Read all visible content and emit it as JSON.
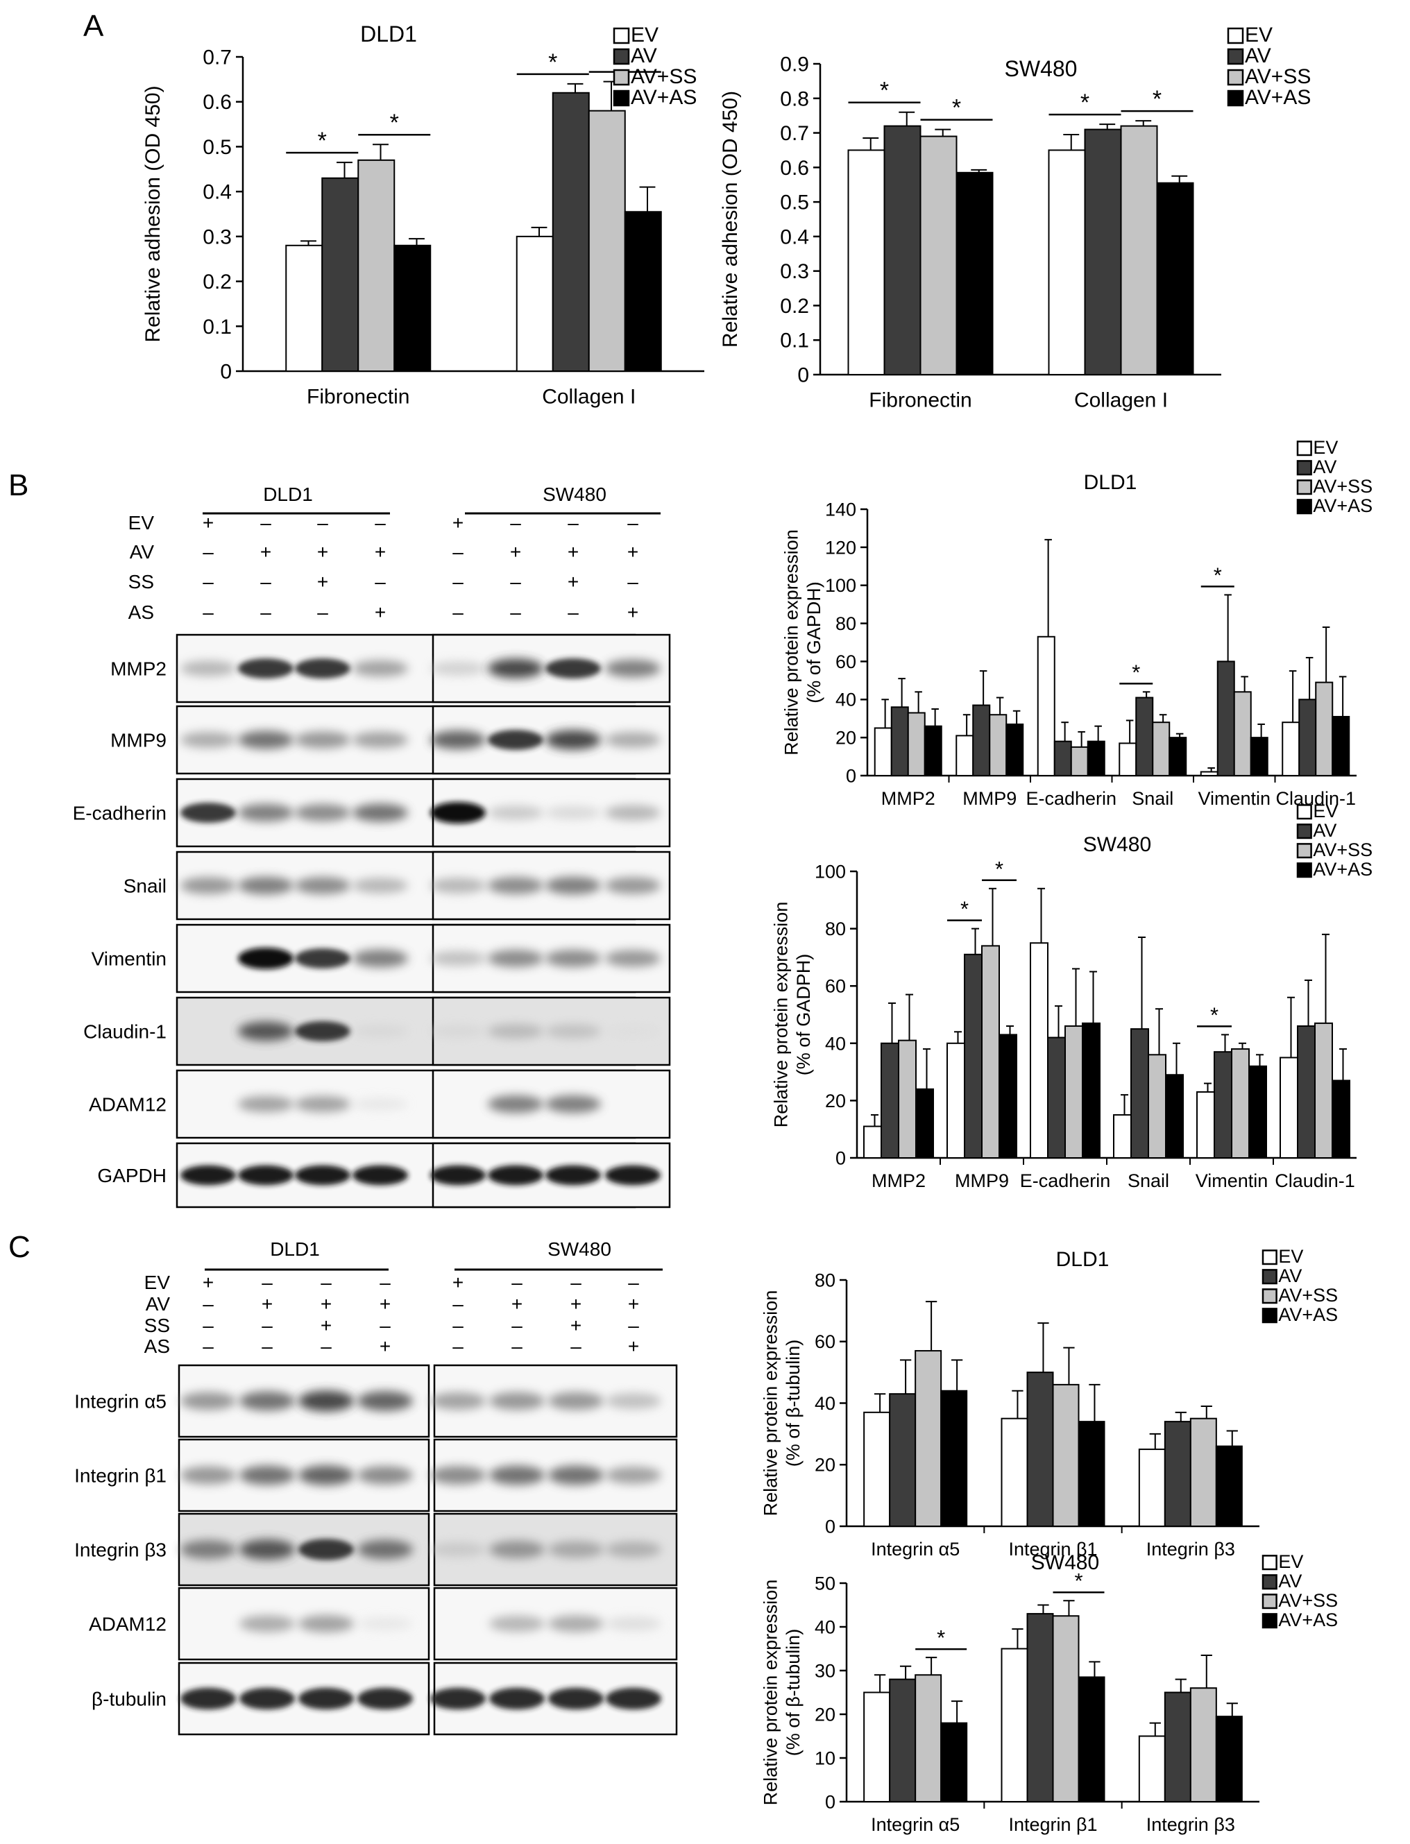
{
  "panels": {
    "A": "A",
    "B": "B",
    "C": "C"
  },
  "legend": [
    "EV",
    "AV",
    "AV+SS",
    "AV+AS"
  ],
  "colors": {
    "EV": "#ffffff",
    "AV": "#3d3d3d",
    "AV+SS": "#c4c4c4",
    "AV+AS": "#000000"
  },
  "blots": {
    "B": {
      "cell_lines": [
        "DLD1",
        "SW480"
      ],
      "treatment_rows": [
        {
          "label": "EV",
          "signs": [
            "+",
            "–",
            "–",
            "–",
            "+",
            "–",
            "–",
            "–"
          ]
        },
        {
          "label": "AV",
          "signs": [
            "–",
            "+",
            "+",
            "+",
            "–",
            "+",
            "+",
            "+"
          ]
        },
        {
          "label": "SS",
          "signs": [
            "–",
            "–",
            "+",
            "–",
            "–",
            "–",
            "+",
            "–"
          ]
        },
        {
          "label": "AS",
          "signs": [
            "–",
            "–",
            "–",
            "+",
            "–",
            "–",
            "–",
            "+"
          ]
        }
      ],
      "proteins": [
        "MMP2",
        "MMP9",
        "E-cadherin",
        "Snail",
        "Vimentin",
        "Claudin-1",
        "ADAM12",
        "GAPDH"
      ]
    },
    "C": {
      "cell_lines": [
        "DLD1",
        "SW480"
      ],
      "treatment_rows": [
        {
          "label": "EV",
          "signs": [
            "+",
            "–",
            "–",
            "–",
            "+",
            "–",
            "–",
            "–"
          ]
        },
        {
          "label": "AV",
          "signs": [
            "–",
            "+",
            "+",
            "+",
            "–",
            "+",
            "+",
            "+"
          ]
        },
        {
          "label": "SS",
          "signs": [
            "–",
            "–",
            "+",
            "–",
            "–",
            "–",
            "+",
            "–"
          ]
        },
        {
          "label": "AS",
          "signs": [
            "–",
            "–",
            "–",
            "+",
            "–",
            "–",
            "–",
            "+"
          ]
        }
      ],
      "proteins": [
        "Integrin α5",
        "Integrin β1",
        "Integrin β3",
        "ADAM12",
        "β-tubulin"
      ]
    }
  },
  "chart_data": [
    {
      "id": "A1",
      "type": "bar",
      "title": "DLD1",
      "ylabel": "Relative adhesion (OD 450)",
      "categories": [
        "Fibronectin",
        "Collagen I"
      ],
      "ylim": [
        0,
        0.7
      ],
      "yticks": [
        "0",
        "0.1",
        "0.2",
        "0.3",
        "0.4",
        "0.5",
        "0.6",
        "0.7"
      ],
      "series": [
        {
          "name": "EV",
          "values": [
            0.28,
            0.3
          ],
          "errors": [
            0.01,
            0.02
          ]
        },
        {
          "name": "AV",
          "values": [
            0.43,
            0.62
          ],
          "errors": [
            0.035,
            0.02
          ]
        },
        {
          "name": "AV+SS",
          "values": [
            0.47,
            0.58
          ],
          "errors": [
            0.035,
            0.065
          ]
        },
        {
          "name": "AV+AS",
          "values": [
            0.28,
            0.355
          ],
          "errors": [
            0.015,
            0.055
          ]
        }
      ],
      "significance": [
        {
          "category": 0,
          "from": 0,
          "to": 1,
          "label": "*"
        },
        {
          "category": 0,
          "from": 2,
          "to": 3,
          "label": "*"
        },
        {
          "category": 1,
          "from": 0,
          "to": 1,
          "label": "*"
        },
        {
          "category": 1,
          "from": 2,
          "to": 3,
          "label": "*"
        }
      ]
    },
    {
      "id": "A2",
      "type": "bar",
      "title": "SW480",
      "ylabel": "Relative adhesion (OD 450)",
      "categories": [
        "Fibronectin",
        "Collagen I"
      ],
      "ylim": [
        0,
        0.9
      ],
      "yticks": [
        "0",
        "0.1",
        "0.2",
        "0.3",
        "0.4",
        "0.5",
        "0.6",
        "0.7",
        "0.8",
        "0.9"
      ],
      "series": [
        {
          "name": "EV",
          "values": [
            0.65,
            0.65
          ],
          "errors": [
            0.035,
            0.045
          ]
        },
        {
          "name": "AV",
          "values": [
            0.72,
            0.71
          ],
          "errors": [
            0.04,
            0.015
          ]
        },
        {
          "name": "AV+SS",
          "values": [
            0.69,
            0.72
          ],
          "errors": [
            0.02,
            0.015
          ]
        },
        {
          "name": "AV+AS",
          "values": [
            0.585,
            0.555
          ],
          "errors": [
            0.008,
            0.02
          ]
        }
      ],
      "significance": [
        {
          "category": 0,
          "from": 0,
          "to": 1,
          "label": "*"
        },
        {
          "category": 0,
          "from": 2,
          "to": 3,
          "label": "*"
        },
        {
          "category": 1,
          "from": 0,
          "to": 1,
          "label": "*"
        },
        {
          "category": 1,
          "from": 2,
          "to": 3,
          "label": "*"
        }
      ]
    },
    {
      "id": "B1",
      "type": "bar",
      "title": "DLD1",
      "ylabel": "Relative protein expression\n(% of GAPDH)",
      "categories": [
        "MMP2",
        "MMP9",
        "E-cadherin",
        "Snail",
        "Vimentin",
        "Claudin-1"
      ],
      "ylim": [
        0,
        140
      ],
      "yticks": [
        "0",
        "20",
        "40",
        "60",
        "80",
        "100",
        "120",
        "140"
      ],
      "series": [
        {
          "name": "EV",
          "values": [
            25,
            21,
            73,
            17,
            2,
            28
          ],
          "errors": [
            15,
            11,
            51,
            12,
            2,
            27
          ]
        },
        {
          "name": "AV",
          "values": [
            36,
            37,
            18,
            41,
            60,
            40
          ],
          "errors": [
            15,
            18,
            10,
            3,
            35,
            22
          ]
        },
        {
          "name": "AV+SS",
          "values": [
            33,
            32,
            15,
            28,
            44,
            49
          ],
          "errors": [
            11,
            9,
            8,
            4,
            8,
            29
          ]
        },
        {
          "name": "AV+AS",
          "values": [
            26,
            27,
            18,
            20,
            20,
            31
          ],
          "errors": [
            9,
            7,
            8,
            2,
            7,
            21
          ]
        }
      ],
      "significance": [
        {
          "category": 3,
          "from": 0,
          "to": 1,
          "label": "*"
        },
        {
          "category": 4,
          "from": 0,
          "to": 1,
          "label": "*"
        }
      ]
    },
    {
      "id": "B2",
      "type": "bar",
      "title": "SW480",
      "ylabel": "Relative protein expression\n(% of GADPH)",
      "categories": [
        "MMP2",
        "MMP9",
        "E-cadherin",
        "Snail",
        "Vimentin",
        "Claudin-1"
      ],
      "ylim": [
        0,
        100
      ],
      "yticks": [
        "0",
        "20",
        "40",
        "60",
        "80",
        "100"
      ],
      "series": [
        {
          "name": "EV",
          "values": [
            11,
            40,
            75,
            15,
            23,
            35
          ],
          "errors": [
            4,
            4,
            19,
            7,
            3,
            21
          ]
        },
        {
          "name": "AV",
          "values": [
            40,
            71,
            42,
            45,
            37,
            46
          ],
          "errors": [
            14,
            9,
            11,
            32,
            6,
            16
          ]
        },
        {
          "name": "AV+SS",
          "values": [
            41,
            74,
            46,
            36,
            38,
            47
          ],
          "errors": [
            16,
            20,
            20,
            16,
            2,
            31
          ]
        },
        {
          "name": "AV+AS",
          "values": [
            24,
            43,
            47,
            29,
            32,
            27
          ],
          "errors": [
            14,
            3,
            18,
            11,
            4,
            11
          ]
        }
      ],
      "significance": [
        {
          "category": 1,
          "from": 0,
          "to": 1,
          "label": "*"
        },
        {
          "category": 1,
          "from": 2,
          "to": 3,
          "label": "*"
        },
        {
          "category": 4,
          "from": 0,
          "to": 1,
          "label": "*"
        }
      ]
    },
    {
      "id": "C1",
      "type": "bar",
      "title": "DLD1",
      "ylabel": "Relative protein expression\n(% of β-tubulin)",
      "categories": [
        "Integrin α5",
        "Integrin β1",
        "Integrin β3"
      ],
      "ylim": [
        0,
        80
      ],
      "yticks": [
        "0",
        "20",
        "40",
        "60",
        "80"
      ],
      "series": [
        {
          "name": "EV",
          "values": [
            37,
            35,
            25
          ],
          "errors": [
            6,
            9,
            5
          ]
        },
        {
          "name": "AV",
          "values": [
            43,
            50,
            34
          ],
          "errors": [
            11,
            16,
            3
          ]
        },
        {
          "name": "AV+SS",
          "values": [
            57,
            46,
            35
          ],
          "errors": [
            16,
            12,
            4
          ]
        },
        {
          "name": "AV+AS",
          "values": [
            44,
            34,
            26
          ],
          "errors": [
            10,
            12,
            5
          ]
        }
      ],
      "significance": []
    },
    {
      "id": "C2",
      "type": "bar",
      "title": "SW480",
      "ylabel": "Relative protein expression\n(% of β-tubulin)",
      "categories": [
        "Integrin α5",
        "Integrin β1",
        "Integrin β3"
      ],
      "ylim": [
        0,
        50
      ],
      "yticks": [
        "0",
        "10",
        "20",
        "30",
        "40",
        "50"
      ],
      "series": [
        {
          "name": "EV",
          "values": [
            25,
            35,
            15
          ],
          "errors": [
            4,
            4.5,
            3
          ]
        },
        {
          "name": "AV",
          "values": [
            28,
            43,
            25
          ],
          "errors": [
            3,
            2,
            3
          ]
        },
        {
          "name": "AV+SS",
          "values": [
            29,
            42.5,
            26
          ],
          "errors": [
            4,
            3.5,
            7.5
          ]
        },
        {
          "name": "AV+AS",
          "values": [
            18,
            28.5,
            19.5
          ],
          "errors": [
            5,
            3.5,
            3
          ]
        }
      ],
      "significance": [
        {
          "category": 0,
          "from": 2,
          "to": 3,
          "label": "*"
        },
        {
          "category": 1,
          "from": 2,
          "to": 3,
          "label": "*"
        }
      ]
    }
  ]
}
